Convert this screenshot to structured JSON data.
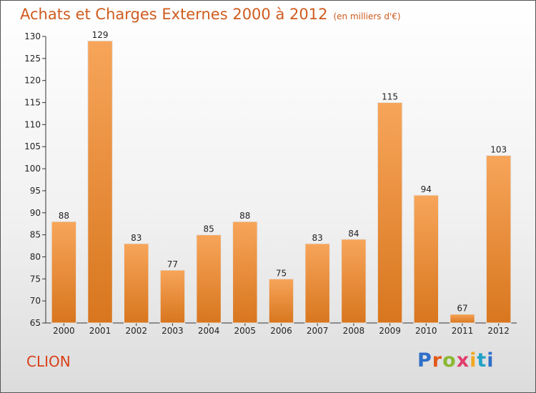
{
  "header": {
    "title": "Achats et Charges Externes 2000 à 2012",
    "subtitle": "(en milliers d'€)"
  },
  "footer": {
    "commune": "CLION",
    "logo_letters": [
      "P",
      "r",
      "o",
      "x",
      "i",
      "t",
      "i"
    ]
  },
  "colors": {
    "bar_light": "#f7a55a",
    "bar_dark": "#d8761e",
    "title": "#cf5b1e",
    "commune": "#d9401b"
  },
  "chart_data": {
    "type": "bar",
    "title": "Achats et Charges Externes 2000 à 2012",
    "xlabel": "",
    "ylabel": "",
    "categories": [
      "2000",
      "2001",
      "2002",
      "2003",
      "2004",
      "2005",
      "2006",
      "2007",
      "2008",
      "2009",
      "2010",
      "2011",
      "2012"
    ],
    "values": [
      88,
      129,
      83,
      77,
      85,
      88,
      75,
      83,
      84,
      115,
      94,
      67,
      103
    ],
    "ylim": [
      65,
      130
    ],
    "yticks": [
      65,
      70,
      75,
      80,
      85,
      90,
      95,
      100,
      105,
      110,
      115,
      120,
      125,
      130
    ],
    "grid": false,
    "legend": "none"
  }
}
